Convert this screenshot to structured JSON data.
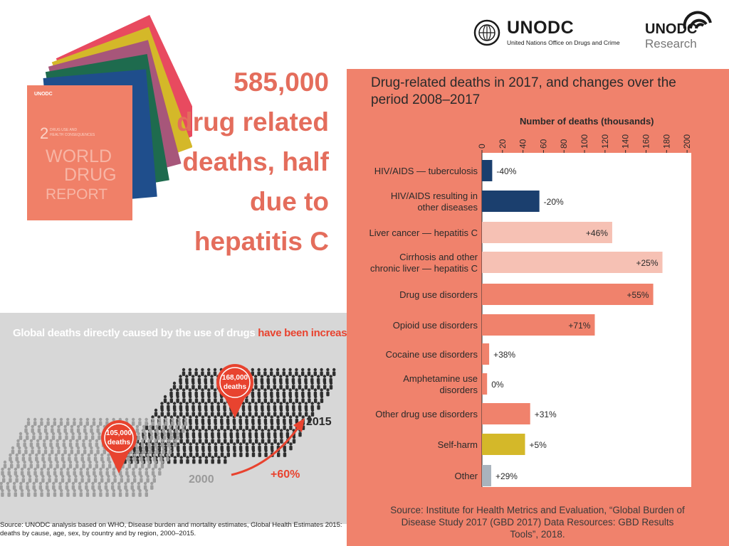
{
  "logos": {
    "unodc_name": "UNODC",
    "unodc_subtitle": "United Nations Office on Drugs and Crime",
    "research_name": "UNODC",
    "research_subtitle": "Research"
  },
  "book": {
    "number": "2",
    "subtitle_line1": "DRUG USE AND",
    "subtitle_line2": "HEALTH CONSEQUENCES",
    "title_lines": [
      "WORLD",
      "DRUG",
      "REPORT"
    ],
    "publisher": "UNODC",
    "cover_colors": [
      "#e84a5f",
      "#d4b829",
      "#a7567a",
      "#1e6b4e",
      "#1f4e8c",
      "#f08068"
    ]
  },
  "headline": {
    "lines": [
      "585,000",
      "drug related",
      "deaths, half",
      "due to",
      "hepatitis C"
    ],
    "color": "#e46d5c"
  },
  "chart_data": [
    {
      "type": "bar",
      "orientation": "horizontal",
      "title": "Drug-related deaths in 2017, and changes over the period 2008–2017",
      "xlabel": "Number of deaths (thousands)",
      "xlim": [
        0,
        200
      ],
      "xticks": [
        "0",
        "20",
        "40",
        "60",
        "80",
        "100",
        "120",
        "140",
        "160",
        "180",
        "200"
      ],
      "categories": [
        [
          "HIV/AIDS — tuberculosis"
        ],
        [
          "HIV/AIDS resulting in",
          "other diseases"
        ],
        [
          "Liver cancer — hepatitis C"
        ],
        [
          "Cirrhosis and other",
          "chronic liver — hepatitis C"
        ],
        [
          "Drug use disorders"
        ],
        [
          "Opioid use disorders"
        ],
        [
          "Cocaine use disorders"
        ],
        [
          "Amphetamine use",
          "disorders"
        ],
        [
          "Other drug use disorders"
        ],
        [
          "Self-harm"
        ],
        [
          "Other"
        ]
      ],
      "values": [
        10,
        56,
        127,
        176,
        167,
        110,
        7,
        5,
        47,
        42,
        9
      ],
      "changes": [
        "-40%",
        "-20%",
        "+46%",
        "+25%",
        "+55%",
        "+71%",
        "+38%",
        "0%",
        "+31%",
        "+5%",
        "+29%"
      ],
      "bar_colors": [
        "#1b3f6e",
        "#1b3f6e",
        "#f6c1b4",
        "#f6c1b4",
        "#f0826c",
        "#f0826c",
        "#f0826c",
        "#f0826c",
        "#f0826c",
        "#d4b829",
        "#a9b3bd"
      ],
      "source": "Source: Institute for Health Metrics and Evaluation, “Global Burden of Disease Study 2017 (GBD 2017) Data Resources: GBD Results Tools”, 2018."
    },
    {
      "type": "pictogram",
      "title_plain": "Global deaths directly caused by the use of drugs ",
      "title_highlight": "have been increasing",
      "years": [
        "2000",
        "2015"
      ],
      "values_label": [
        "105,000 deaths",
        "168,000 deaths"
      ],
      "values": [
        105000,
        168000
      ],
      "change": "+60%",
      "highlight_color": "#e8432f"
    }
  ],
  "info_source": "Source: UNODC analysis based on WHO, Disease burden and mortality estimates, Global Health Estimates 2015: deaths by cause, age, sex, by country and by region, 2000–2015."
}
